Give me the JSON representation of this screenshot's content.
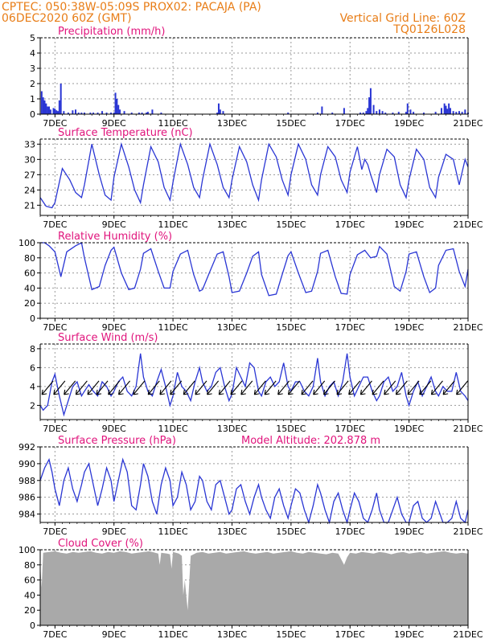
{
  "header": {
    "left_line1": "CPTEC:   050:38W-05:09S   PROX02: PACAJA (PA)",
    "left_line2": "06DEC2020 60Z (GMT)",
    "right_line1": "Vertical Grid Line: 60Z",
    "right_line2": "TQ0126L028"
  },
  "colors": {
    "header": "#e87d17",
    "title": "#e0147c",
    "series": "#2a36d4",
    "cloud": "#a9a9a9",
    "wind_arrow": "#000000"
  },
  "chart_data": [
    {
      "id": "precip",
      "type": "bar",
      "title": "Precipitation (mm/h)",
      "ylim": [
        0,
        5
      ],
      "yticks": [
        0,
        1,
        2,
        3,
        4,
        5
      ],
      "xticks": [
        "7DEC",
        "9DEC",
        "11DEC",
        "13DEC",
        "15DEC",
        "17DEC",
        "19DEC",
        "21DEC"
      ],
      "xlim_days": [
        6.5,
        21.0
      ],
      "grid": true,
      "x_day": [
        6.55,
        6.6,
        6.65,
        6.7,
        6.75,
        6.8,
        6.85,
        6.95,
        7.0,
        7.05,
        7.1,
        7.15,
        7.2,
        7.3,
        7.45,
        7.6,
        7.7,
        7.8,
        7.9,
        8.0,
        8.2,
        8.3,
        8.45,
        8.6,
        8.75,
        8.9,
        9.0,
        9.05,
        9.1,
        9.15,
        9.2,
        9.35,
        9.6,
        9.85,
        9.95,
        10.1,
        10.15,
        10.3,
        10.6,
        12.5,
        12.55,
        12.6,
        12.7,
        14.9,
        15.9,
        16.05,
        16.4,
        16.8,
        17.35,
        17.45,
        17.55,
        17.6,
        17.65,
        17.7,
        17.8,
        17.9,
        18.0,
        18.1,
        18.2,
        18.45,
        18.65,
        18.9,
        18.95,
        19.05,
        19.15,
        19.5,
        19.9,
        20.1,
        20.2,
        20.25,
        20.3,
        20.35,
        20.4,
        20.5,
        20.6,
        20.7,
        20.8,
        20.9,
        21.0
      ],
      "values": [
        1.5,
        1.1,
        0.9,
        0.7,
        0.5,
        0.5,
        0.3,
        0.4,
        0.35,
        0.25,
        0.2,
        0.9,
        2.0,
        0.2,
        0.1,
        0.25,
        0.3,
        0.1,
        0.1,
        0.1,
        0.1,
        0.1,
        0.1,
        0.2,
        0.1,
        0.1,
        0.1,
        1.4,
        1.0,
        0.6,
        0.3,
        0.2,
        0.1,
        0.1,
        0.1,
        0.1,
        0.15,
        0.3,
        0.1,
        0.1,
        0.7,
        0.3,
        0.2,
        0.1,
        0.1,
        0.5,
        0.1,
        0.4,
        0.1,
        0.1,
        0.2,
        0.4,
        1.1,
        1.7,
        0.6,
        0.2,
        0.3,
        0.2,
        0.1,
        0.1,
        0.15,
        0.15,
        0.7,
        0.3,
        0.15,
        0.1,
        0.15,
        0.4,
        0.7,
        0.55,
        0.35,
        0.7,
        0.4,
        0.2,
        0.15,
        0.2,
        0.15,
        0.3,
        0.1
      ]
    },
    {
      "id": "temp",
      "type": "line",
      "title": "Surface Temperature (nC)",
      "ylim": [
        19,
        34
      ],
      "yticks": [
        21,
        24,
        27,
        30,
        33
      ],
      "xticks": [
        "7DEC",
        "9DEC",
        "11DEC",
        "13DEC",
        "15DEC",
        "17DEC",
        "19DEC",
        "21DEC"
      ],
      "xlim_days": [
        6.5,
        21.0
      ],
      "grid": true,
      "x_day": [
        6.5,
        6.7,
        6.9,
        7.0,
        7.25,
        7.5,
        7.7,
        7.9,
        8.0,
        8.25,
        8.5,
        8.7,
        8.9,
        9.0,
        9.25,
        9.5,
        9.7,
        9.9,
        10.0,
        10.25,
        10.5,
        10.7,
        10.9,
        11.0,
        11.25,
        11.5,
        11.7,
        11.9,
        12.0,
        12.25,
        12.5,
        12.7,
        12.9,
        13.0,
        13.25,
        13.5,
        13.7,
        13.9,
        14.0,
        14.25,
        14.5,
        14.7,
        14.9,
        15.0,
        15.25,
        15.5,
        15.7,
        15.9,
        16.0,
        16.25,
        16.5,
        16.7,
        16.9,
        17.0,
        17.25,
        17.4,
        17.5,
        17.6,
        17.7,
        17.9,
        18.0,
        18.25,
        18.5,
        18.7,
        18.9,
        19.0,
        19.25,
        19.5,
        19.7,
        19.9,
        20.0,
        20.25,
        20.5,
        20.7,
        20.9,
        21.0
      ],
      "values": [
        22.5,
        20.8,
        20.5,
        21.5,
        28.2,
        26.0,
        23.5,
        22.5,
        25.0,
        33.0,
        27.0,
        23.0,
        22.0,
        26.5,
        33.0,
        28.5,
        24.0,
        21.5,
        25.0,
        32.5,
        29.5,
        24.5,
        22.0,
        25.5,
        33.0,
        29.0,
        24.5,
        22.5,
        26.0,
        33.0,
        29.0,
        24.5,
        22.5,
        26.0,
        32.5,
        29.5,
        25.0,
        22.0,
        26.0,
        33.0,
        30.5,
        26.0,
        23.0,
        27.0,
        33.0,
        30.0,
        25.0,
        23.0,
        27.0,
        32.5,
        30.5,
        26.0,
        23.5,
        27.5,
        32.5,
        28.0,
        30.0,
        29.0,
        27.0,
        23.5,
        27.0,
        32.0,
        30.5,
        25.0,
        22.5,
        26.0,
        32.0,
        30.0,
        24.5,
        22.5,
        26.5,
        31.0,
        30.0,
        25.0,
        30.0,
        28.5
      ]
    },
    {
      "id": "rh",
      "type": "line",
      "title": "Relative Humidity (%)",
      "ylim": [
        0,
        100
      ],
      "yticks": [
        0,
        20,
        40,
        60,
        80,
        100
      ],
      "xticks": [
        "7DEC",
        "9DEC",
        "11DEC",
        "13DEC",
        "15DEC",
        "17DEC",
        "19DEC",
        "21DEC"
      ],
      "xlim_days": [
        6.5,
        21.0
      ],
      "grid": true,
      "x_day": [
        6.5,
        6.65,
        6.8,
        7.0,
        7.2,
        7.4,
        7.7,
        7.9,
        8.0,
        8.25,
        8.5,
        8.7,
        8.9,
        9.0,
        9.25,
        9.5,
        9.7,
        9.9,
        10.0,
        10.25,
        10.5,
        10.7,
        10.9,
        11.0,
        11.25,
        11.5,
        11.7,
        11.9,
        12.0,
        12.25,
        12.5,
        12.7,
        12.9,
        13.0,
        13.25,
        13.5,
        13.7,
        13.9,
        14.0,
        14.25,
        14.5,
        14.7,
        14.9,
        15.0,
        15.25,
        15.5,
        15.7,
        15.9,
        16.0,
        16.25,
        16.5,
        16.7,
        16.9,
        17.0,
        17.25,
        17.5,
        17.7,
        17.9,
        18.0,
        18.25,
        18.5,
        18.7,
        18.9,
        19.0,
        19.25,
        19.5,
        19.7,
        19.9,
        20.0,
        20.25,
        20.5,
        20.7,
        20.9,
        21.0
      ],
      "values": [
        100,
        100,
        96,
        88,
        55,
        88,
        96,
        100,
        80,
        38,
        42,
        70,
        90,
        94,
        60,
        38,
        40,
        65,
        86,
        92,
        62,
        40,
        40,
        62,
        85,
        90,
        58,
        36,
        38,
        62,
        85,
        88,
        55,
        34,
        36,
        60,
        82,
        88,
        58,
        30,
        32,
        58,
        83,
        88,
        60,
        34,
        36,
        62,
        86,
        90,
        55,
        33,
        32,
        58,
        84,
        90,
        80,
        82,
        95,
        85,
        42,
        36,
        62,
        85,
        88,
        55,
        34,
        40,
        70,
        90,
        92,
        62,
        42,
        65
      ]
    },
    {
      "id": "wind",
      "type": "line",
      "title": "Surface Wind (m/s)",
      "ylim": [
        0.5,
        8.5
      ],
      "yticks": [
        2,
        4,
        6,
        8
      ],
      "xticks": [
        "7DEC",
        "9DEC",
        "11DEC",
        "13DEC",
        "15DEC",
        "17DEC",
        "19DEC",
        "21DEC"
      ],
      "xlim_days": [
        6.5,
        21.0
      ],
      "grid": true,
      "x_day": [
        6.5,
        6.6,
        6.75,
        6.9,
        7.0,
        7.15,
        7.3,
        7.45,
        7.6,
        7.75,
        7.9,
        8.0,
        8.15,
        8.3,
        8.45,
        8.6,
        8.75,
        8.9,
        9.0,
        9.15,
        9.3,
        9.45,
        9.6,
        9.75,
        9.9,
        10.0,
        10.15,
        10.3,
        10.45,
        10.6,
        10.75,
        10.9,
        11.0,
        11.15,
        11.3,
        11.45,
        11.6,
        11.75,
        11.9,
        12.0,
        12.15,
        12.3,
        12.45,
        12.6,
        12.75,
        12.9,
        13.0,
        13.15,
        13.3,
        13.45,
        13.6,
        13.75,
        13.9,
        14.0,
        14.15,
        14.3,
        14.45,
        14.6,
        14.75,
        14.9,
        15.0,
        15.15,
        15.3,
        15.45,
        15.6,
        15.75,
        15.9,
        16.0,
        16.15,
        16.3,
        16.45,
        16.6,
        16.75,
        16.9,
        17.0,
        17.15,
        17.3,
        17.45,
        17.6,
        17.75,
        17.9,
        18.0,
        18.15,
        18.3,
        18.45,
        18.6,
        18.75,
        18.9,
        19.0,
        19.15,
        19.3,
        19.45,
        19.6,
        19.75,
        19.9,
        20.0,
        20.15,
        20.3,
        20.45,
        20.6,
        20.75,
        20.9,
        21.0
      ],
      "values": [
        2.0,
        1.5,
        2.0,
        4.5,
        5.3,
        3.0,
        1.0,
        2.5,
        4.0,
        4.5,
        3.0,
        3.5,
        4.2,
        3.5,
        3.0,
        4.5,
        4.0,
        3.0,
        3.5,
        4.5,
        5.0,
        3.5,
        3.0,
        4.0,
        7.5,
        5.0,
        3.5,
        3.0,
        4.5,
        5.8,
        4.0,
        2.0,
        3.0,
        5.5,
        4.0,
        3.5,
        2.5,
        4.5,
        6.0,
        4.5,
        3.5,
        4.0,
        5.5,
        6.0,
        4.0,
        2.5,
        3.2,
        6.0,
        5.0,
        4.0,
        6.5,
        6.0,
        3.5,
        3.0,
        4.5,
        5.0,
        4.0,
        4.5,
        6.5,
        4.0,
        3.5,
        4.5,
        4.5,
        3.5,
        3.0,
        4.0,
        7.0,
        4.5,
        3.0,
        4.0,
        4.5,
        3.0,
        4.5,
        7.5,
        5.0,
        3.0,
        4.0,
        5.0,
        5.0,
        3.5,
        2.5,
        3.0,
        4.5,
        5.0,
        3.5,
        4.0,
        5.5,
        3.0,
        2.0,
        3.5,
        4.5,
        3.0,
        4.0,
        5.0,
        3.5,
        3.0,
        4.0,
        3.5,
        3.5,
        5.5,
        3.5,
        3.0,
        2.5
      ],
      "arrows_x_day": [
        6.75,
        7.15,
        7.5,
        7.9,
        8.3,
        8.6,
        9.0,
        9.35,
        9.85,
        10.35,
        10.75,
        11.1,
        11.55,
        11.95,
        12.35,
        12.75,
        13.15,
        13.5,
        13.95,
        14.3,
        14.75,
        15.1,
        15.55,
        15.95,
        16.3,
        16.75,
        17.15,
        17.55,
        17.95,
        18.35,
        18.75,
        19.15,
        19.55,
        19.95,
        20.35,
        20.8
      ]
    },
    {
      "id": "pressure",
      "type": "line",
      "title": "Surface Pressure (hPa)",
      "annotation": "Model Altitude: 202.878 m",
      "ylim": [
        983,
        992
      ],
      "yticks": [
        984,
        986,
        988,
        990,
        992
      ],
      "xticks": [
        "7DEC",
        "9DEC",
        "11DEC",
        "13DEC",
        "15DEC",
        "17DEC",
        "19DEC",
        "21DEC"
      ],
      "xlim_days": [
        6.5,
        21.0
      ],
      "grid": true,
      "x_day": [
        6.5,
        6.65,
        6.8,
        6.9,
        7.0,
        7.15,
        7.3,
        7.45,
        7.6,
        7.75,
        7.9,
        8.0,
        8.15,
        8.3,
        8.45,
        8.6,
        8.75,
        8.9,
        9.0,
        9.15,
        9.3,
        9.45,
        9.6,
        9.75,
        9.9,
        10.0,
        10.15,
        10.3,
        10.45,
        10.6,
        10.75,
        10.9,
        11.0,
        11.15,
        11.3,
        11.45,
        11.6,
        11.75,
        11.9,
        12.0,
        12.15,
        12.3,
        12.45,
        12.6,
        12.75,
        12.9,
        13.0,
        13.15,
        13.3,
        13.45,
        13.6,
        13.75,
        13.9,
        14.0,
        14.15,
        14.3,
        14.45,
        14.6,
        14.75,
        14.9,
        15.0,
        15.15,
        15.3,
        15.45,
        15.6,
        15.75,
        15.9,
        16.0,
        16.15,
        16.3,
        16.45,
        16.6,
        16.75,
        16.9,
        17.0,
        17.15,
        17.3,
        17.45,
        17.6,
        17.75,
        17.9,
        18.0,
        18.15,
        18.3,
        18.45,
        18.6,
        18.75,
        18.9,
        19.0,
        19.15,
        19.3,
        19.45,
        19.6,
        19.75,
        19.9,
        20.0,
        20.15,
        20.3,
        20.45,
        20.6,
        20.75,
        20.9,
        21.0
      ],
      "values": [
        988.0,
        989.5,
        990.5,
        989.0,
        987.0,
        985.0,
        988.0,
        989.5,
        987.0,
        985.5,
        987.5,
        989.0,
        990.0,
        987.5,
        985.0,
        987.0,
        989.5,
        988.0,
        985.5,
        988.0,
        990.5,
        989.0,
        985.0,
        984.5,
        987.5,
        990.0,
        988.5,
        985.5,
        984.0,
        987.5,
        989.5,
        988.0,
        985.0,
        986.0,
        989.0,
        987.5,
        984.5,
        985.5,
        988.5,
        988.0,
        985.5,
        984.5,
        987.5,
        988.0,
        986.0,
        984.0,
        984.5,
        987.0,
        987.5,
        985.5,
        984.0,
        986.0,
        987.5,
        986.0,
        984.5,
        983.5,
        986.0,
        987.0,
        985.0,
        983.5,
        985.0,
        987.0,
        986.5,
        984.5,
        983.0,
        985.0,
        987.5,
        986.5,
        984.5,
        983.0,
        985.5,
        986.5,
        984.5,
        982.5,
        984.5,
        986.5,
        985.5,
        983.5,
        982.0,
        984.5,
        986.5,
        984.5,
        982.5,
        982.0,
        984.5,
        986.0,
        984.0,
        982.0,
        982.5,
        985.0,
        985.5,
        983.5,
        982.0,
        983.5,
        985.5,
        984.5,
        982.5,
        981.5,
        983.5,
        985.5,
        983.5,
        982.0,
        984.5
      ]
    },
    {
      "id": "cloud",
      "type": "area",
      "title": "Cloud Cover (%)",
      "ylim": [
        0,
        100
      ],
      "yticks": [
        0,
        20,
        40,
        60,
        80,
        100
      ],
      "xticks": [
        "7DEC",
        "9DEC",
        "11DEC",
        "13DEC",
        "15DEC",
        "17DEC",
        "19DEC",
        "21DEC"
      ],
      "xlim_days": [
        6.5,
        21.0
      ],
      "grid": true,
      "x_day": [
        6.5,
        6.55,
        6.6,
        6.8,
        7.0,
        7.2,
        7.4,
        7.6,
        7.8,
        8.0,
        8.2,
        8.4,
        8.6,
        8.8,
        9.0,
        9.2,
        9.4,
        9.6,
        9.8,
        10.0,
        10.2,
        10.4,
        10.5,
        10.55,
        10.6,
        10.8,
        10.9,
        10.95,
        11.0,
        11.2,
        11.3,
        11.35,
        11.4,
        11.5,
        11.6,
        11.7,
        11.8,
        12.0,
        12.2,
        12.4,
        12.6,
        12.8,
        13.0,
        13.2,
        13.4,
        13.6,
        13.8,
        14.0,
        14.2,
        14.4,
        14.6,
        14.8,
        15.0,
        15.2,
        15.4,
        15.6,
        15.8,
        16.0,
        16.2,
        16.4,
        16.6,
        16.8,
        16.9,
        17.0,
        17.2,
        17.4,
        17.6,
        17.8,
        18.0,
        18.2,
        18.4,
        18.6,
        18.8,
        19.0,
        19.2,
        19.4,
        19.6,
        19.8,
        20.0,
        20.2,
        20.4,
        20.6,
        20.8,
        21.0
      ],
      "values": [
        80,
        50,
        96,
        97,
        98,
        96,
        95,
        97,
        96,
        97,
        98,
        96,
        95,
        97,
        96,
        98,
        97,
        95,
        96,
        97,
        98,
        96,
        95,
        80,
        96,
        95,
        94,
        75,
        97,
        95,
        92,
        40,
        60,
        20,
        92,
        94,
        96,
        97,
        95,
        96,
        97,
        95,
        96,
        97,
        98,
        96,
        95,
        96,
        97,
        95,
        96,
        97,
        98,
        96,
        95,
        97,
        96,
        95,
        94,
        96,
        95,
        80,
        90,
        96,
        95,
        97,
        96,
        95,
        97,
        96,
        94,
        96,
        97,
        95,
        96,
        97,
        95,
        96,
        97,
        98,
        96,
        95,
        96,
        95
      ]
    }
  ]
}
